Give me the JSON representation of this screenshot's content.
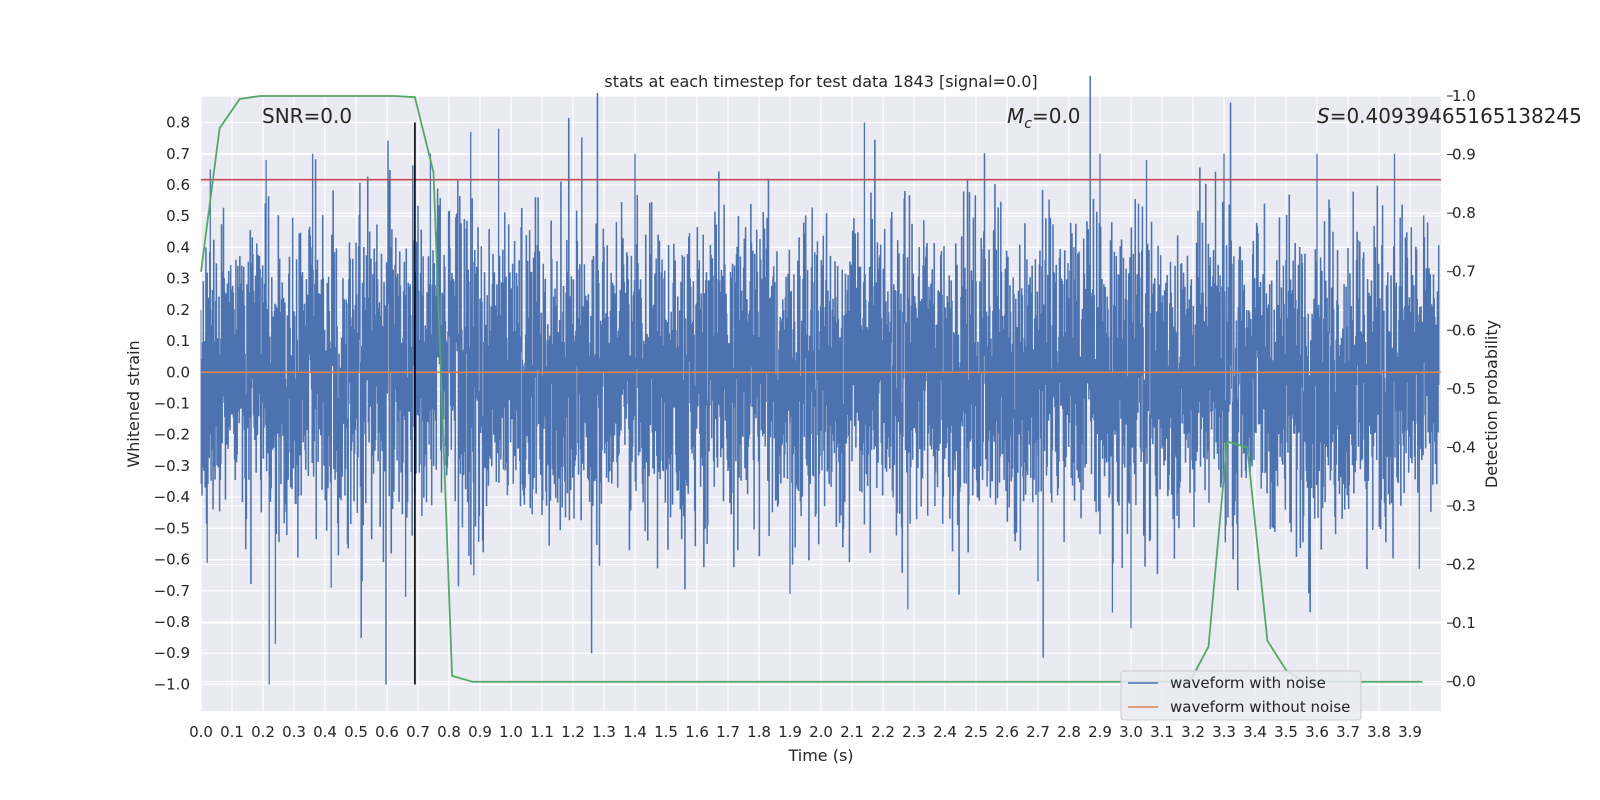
{
  "chart_data": {
    "type": "line",
    "title": "stats at each timestep for test data 1843 [signal=0.0]",
    "xlabel": "Time (s)",
    "ylabel": "Whitened strain",
    "y2label": "Detection probability",
    "xlim": [
      0.0,
      4.0
    ],
    "ylim": [
      -1.085,
      0.885
    ],
    "y2lim": [
      -0.05,
      1.0
    ],
    "x_ticks": [
      "0.0",
      "0.1",
      "0.2",
      "0.3",
      "0.4",
      "0.5",
      "0.6",
      "0.7",
      "0.8",
      "0.9",
      "1.0",
      "1.1",
      "1.2",
      "1.3",
      "1.4",
      "1.5",
      "1.6",
      "1.7",
      "1.8",
      "1.9",
      "2.0",
      "2.1",
      "2.2",
      "2.3",
      "2.4",
      "2.5",
      "2.6",
      "2.7",
      "2.8",
      "2.9",
      "3.0",
      "3.1",
      "3.2",
      "3.3",
      "3.4",
      "3.5",
      "3.6",
      "3.7",
      "3.8",
      "3.9"
    ],
    "y_ticks": [
      "0.8",
      "0.7",
      "0.6",
      "0.5",
      "0.4",
      "0.3",
      "0.2",
      "0.1",
      "0.0",
      "-0.1",
      "-0.2",
      "-0.3",
      "-0.4",
      "-0.5",
      "-0.6",
      "-0.7",
      "-0.8",
      "-0.9",
      "-1.0"
    ],
    "y2_ticks": [
      "1.0",
      "0.9",
      "0.8",
      "0.7",
      "0.6",
      "0.5",
      "0.4",
      "0.3",
      "0.2",
      "0.1",
      "0.0"
    ],
    "annotations": {
      "snr": "SNR=0.0",
      "mc_symbol": "M",
      "mc_sub": "c",
      "mc_value": "=0.0",
      "s_symbol": "S",
      "s_value": "=0.40939465165138245"
    },
    "series": [
      {
        "name": "waveform with noise",
        "axis": "left",
        "color": "#4c72b0",
        "style": "dense noise",
        "envelope_peaks": [
          {
            "x": 0.02,
            "y": -0.61
          },
          {
            "x": 0.03,
            "y": 0.65
          },
          {
            "x": 0.22,
            "y": -1.0
          },
          {
            "x": 0.24,
            "y": -0.87
          },
          {
            "x": 0.21,
            "y": 0.68
          },
          {
            "x": 0.36,
            "y": 0.7
          },
          {
            "x": 0.42,
            "y": -0.69
          },
          {
            "x": 0.52,
            "y": -0.67
          },
          {
            "x": 0.66,
            "y": -0.72
          },
          {
            "x": 0.74,
            "y": 0.7
          },
          {
            "x": 0.87,
            "y": 0.77
          },
          {
            "x": 0.96,
            "y": 0.78
          },
          {
            "x": 0.88,
            "y": -0.65
          },
          {
            "x": 1.4,
            "y": 0.7
          },
          {
            "x": 1.9,
            "y": -0.71
          },
          {
            "x": 2.14,
            "y": 0.8
          },
          {
            "x": 2.28,
            "y": -0.76
          },
          {
            "x": 2.7,
            "y": -0.67
          },
          {
            "x": 2.9,
            "y": 0.7
          },
          {
            "x": 2.94,
            "y": -0.77
          },
          {
            "x": 3.0,
            "y": -0.82
          },
          {
            "x": 3.05,
            "y": 0.68
          },
          {
            "x": 3.3,
            "y": 0.7
          },
          {
            "x": 3.6,
            "y": 0.7
          },
          {
            "x": 3.85,
            "y": 0.7
          },
          {
            "x": 3.93,
            "y": -0.63
          }
        ]
      },
      {
        "name": "waveform without noise",
        "axis": "left",
        "color": "#dd8452",
        "x": [
          0.0,
          4.0
        ],
        "y": [
          0.0,
          0.0
        ]
      },
      {
        "name": "detection probability",
        "axis": "right",
        "color": "#55a868",
        "x": [
          0.0,
          0.06,
          0.125,
          0.19,
          0.25,
          0.31,
          0.375,
          0.44,
          0.5,
          0.56,
          0.625,
          0.69,
          0.75,
          0.81,
          0.875,
          0.94,
          1.0,
          3.125,
          3.19,
          3.25,
          3.31,
          3.375,
          3.44,
          3.5,
          3.56,
          3.94
        ],
        "y": [
          0.7,
          0.945,
          0.995,
          1.0,
          1.0,
          1.0,
          1.0,
          1.0,
          1.0,
          1.0,
          1.0,
          0.998,
          0.87,
          0.01,
          0.0,
          0.0,
          0.0,
          0.0,
          0.0,
          0.06,
          0.41,
          0.4,
          0.07,
          0.02,
          0.0,
          0.0
        ]
      }
    ],
    "hlines": [
      {
        "y": 0.617,
        "axis": "left",
        "color": "#c44e52"
      }
    ],
    "vlines": [
      {
        "x": 0.69,
        "y_from": -1.0,
        "y_to": 0.8,
        "color": "#000000"
      }
    ],
    "legend_placement": "lower-right",
    "grid": true,
    "facecolor": "#eaeaf2"
  }
}
